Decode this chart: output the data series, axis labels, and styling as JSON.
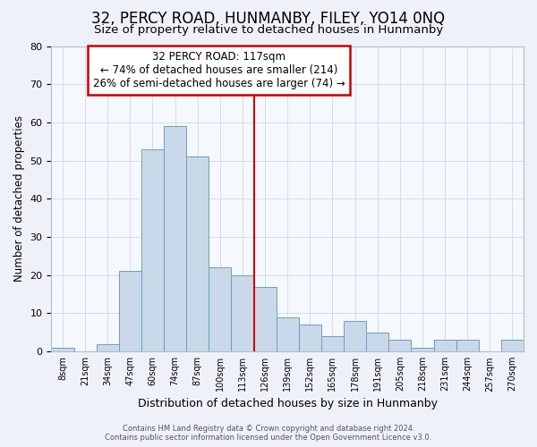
{
  "title": "32, PERCY ROAD, HUNMANBY, FILEY, YO14 0NQ",
  "subtitle": "Size of property relative to detached houses in Hunmanby",
  "xlabel": "Distribution of detached houses by size in Hunmanby",
  "ylabel": "Number of detached properties",
  "bar_labels": [
    "8sqm",
    "21sqm",
    "34sqm",
    "47sqm",
    "60sqm",
    "74sqm",
    "87sqm",
    "100sqm",
    "113sqm",
    "126sqm",
    "139sqm",
    "152sqm",
    "165sqm",
    "178sqm",
    "191sqm",
    "205sqm",
    "218sqm",
    "231sqm",
    "244sqm",
    "257sqm",
    "270sqm"
  ],
  "bar_values": [
    1,
    0,
    2,
    21,
    53,
    59,
    51,
    22,
    20,
    17,
    9,
    7,
    4,
    8,
    5,
    3,
    1,
    3,
    3,
    0,
    3
  ],
  "bar_color": "#c9d9ea",
  "bar_edge_color": "#6a9fc0",
  "vline_x": 8.5,
  "vline_color": "#cc0000",
  "ylim": [
    0,
    80
  ],
  "yticks": [
    0,
    10,
    20,
    30,
    40,
    50,
    60,
    70,
    80
  ],
  "annotation_title": "32 PERCY ROAD: 117sqm",
  "annotation_line1": "← 74% of detached houses are smaller (214)",
  "annotation_line2": "26% of semi-detached houses are larger (74) →",
  "annotation_box_color": "#cc0000",
  "footer_line1": "Contains HM Land Registry data © Crown copyright and database right 2024.",
  "footer_line2": "Contains public sector information licensed under the Open Government Licence v3.0.",
  "background_color": "#eef2f8",
  "plot_background_color": "#f5f8fc",
  "grid_color": "#d0d8e8",
  "title_fontsize": 12,
  "subtitle_fontsize": 9.5,
  "annotation_fontsize": 8.5
}
